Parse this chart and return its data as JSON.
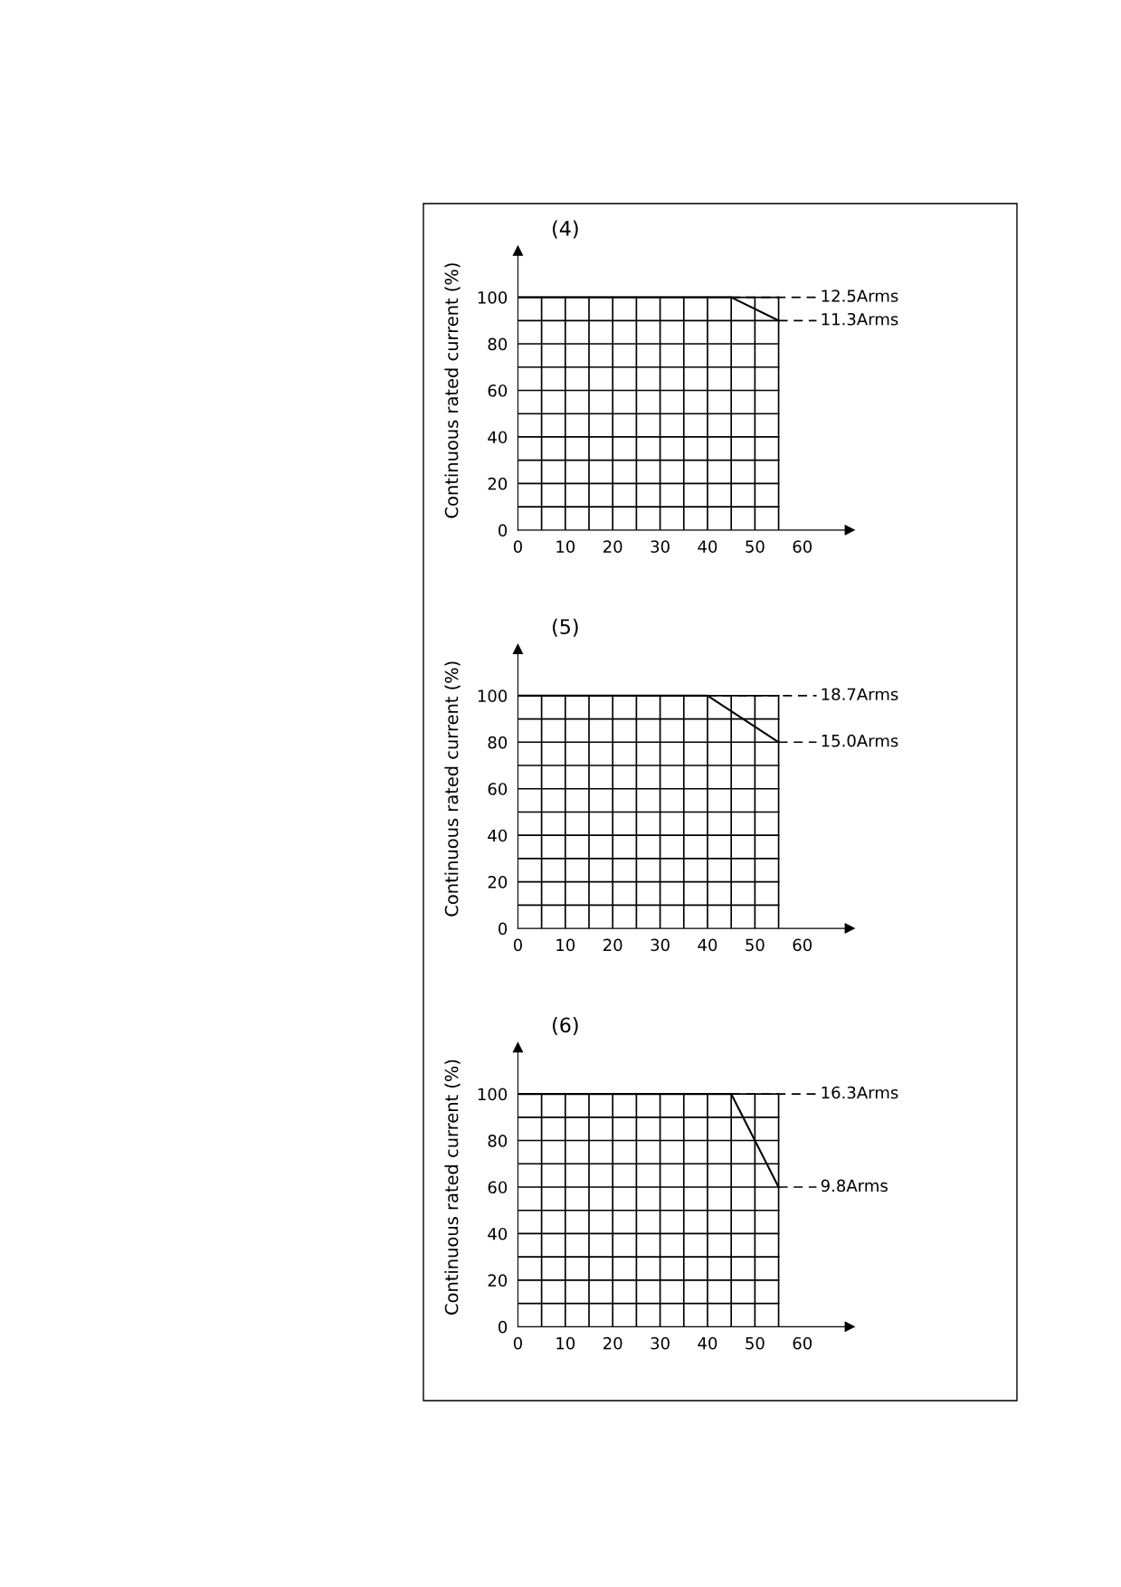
{
  "chart_data": [
    {
      "type": "line",
      "title": "(4)",
      "ylabel": "Continuous rated current (%)",
      "x": [
        0,
        45,
        55
      ],
      "series": [
        {
          "color": "#000000",
          "values": [
            100,
            100,
            90
          ]
        }
      ],
      "xlim": [
        0,
        70
      ],
      "ylim": [
        0,
        120
      ],
      "xticks": [
        0,
        {
          "value": 5,
          "label": null
        },
        10,
        {
          "value": 15,
          "label": null
        },
        20,
        {
          "value": 25,
          "label": null
        },
        30,
        {
          "value": 35,
          "label": null
        },
        40,
        {
          "value": 45,
          "label": null
        },
        50,
        {
          "value": 55,
          "label": null
        },
        60
      ],
      "yticks": [
        0,
        {
          "value": 10,
          "label": null
        },
        20,
        {
          "value": 30,
          "label": null
        },
        40,
        {
          "value": 50,
          "label": null
        },
        60,
        {
          "value": 70,
          "label": null
        },
        80,
        {
          "value": 90,
          "label": null
        },
        100
      ],
      "grid": true,
      "marker": "none",
      "line_style": "solid",
      "annotations": [
        {
          "text": "12.5Arms",
          "x": 45,
          "y": 100
        },
        {
          "text": "11.3Arms",
          "x": 55,
          "y": 90
        }
      ]
    },
    {
      "type": "line",
      "title": "(5)",
      "ylabel": "Continuous rated current (%)",
      "x": [
        0,
        40,
        55
      ],
      "series": [
        {
          "color": "#000000",
          "values": [
            100,
            100,
            80
          ]
        }
      ],
      "xlim": [
        0,
        70
      ],
      "ylim": [
        0,
        120
      ],
      "xticks": [
        0,
        {
          "value": 5,
          "label": null
        },
        10,
        {
          "value": 15,
          "label": null
        },
        20,
        {
          "value": 25,
          "label": null
        },
        30,
        {
          "value": 35,
          "label": null
        },
        40,
        {
          "value": 45,
          "label": null
        },
        50,
        {
          "value": 55,
          "label": null
        },
        60
      ],
      "yticks": [
        0,
        {
          "value": 10,
          "label": null
        },
        20,
        {
          "value": 30,
          "label": null
        },
        40,
        {
          "value": 50,
          "label": null
        },
        60,
        {
          "value": 70,
          "label": null
        },
        80,
        {
          "value": 90,
          "label": null
        },
        100
      ],
      "grid": true,
      "marker": "none",
      "line_style": "solid",
      "annotations": [
        {
          "text": "18.7Arms",
          "x": 40,
          "y": 100
        },
        {
          "text": "15.0Arms",
          "x": 55,
          "y": 80
        }
      ]
    },
    {
      "type": "line",
      "title": "(6)",
      "ylabel": "Continuous rated current (%)",
      "x": [
        0,
        45,
        55
      ],
      "series": [
        {
          "color": "#000000",
          "values": [
            100,
            100,
            60
          ]
        }
      ],
      "xlim": [
        0,
        70
      ],
      "ylim": [
        0,
        120
      ],
      "xticks": [
        0,
        {
          "value": 5,
          "label": null
        },
        10,
        {
          "value": 15,
          "label": null
        },
        20,
        {
          "value": 25,
          "label": null
        },
        30,
        {
          "value": 35,
          "label": null
        },
        40,
        {
          "value": 45,
          "label": null
        },
        50,
        {
          "value": 55,
          "label": null
        },
        60
      ],
      "yticks": [
        0,
        {
          "value": 10,
          "label": null
        },
        20,
        {
          "value": 30,
          "label": null
        },
        40,
        {
          "value": 50,
          "label": null
        },
        60,
        {
          "value": 70,
          "label": null
        },
        80,
        {
          "value": 90,
          "label": null
        },
        100
      ],
      "grid": true,
      "marker": "none",
      "line_style": "solid",
      "annotations": [
        {
          "text": "16.3Arms",
          "x": 45,
          "y": 100
        },
        {
          "text": "9.8Arms",
          "x": 55,
          "y": 60
        }
      ]
    }
  ]
}
